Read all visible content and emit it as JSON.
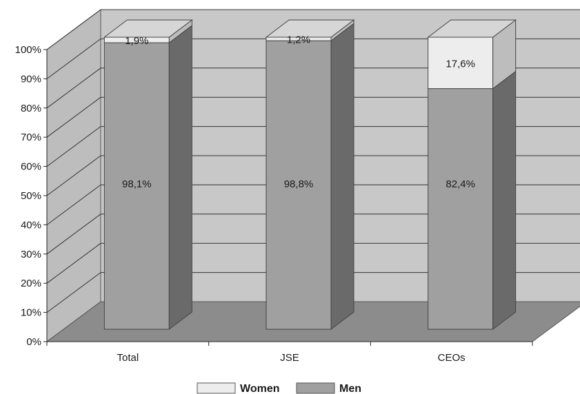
{
  "chart_data": {
    "type": "bar",
    "stacked": true,
    "percent": true,
    "three_d": true,
    "categories": [
      "Total",
      "JSE",
      "CEOs"
    ],
    "series": [
      {
        "name": "Men",
        "values": [
          98.1,
          98.8,
          82.4
        ],
        "labels": [
          "98,1%",
          "98,8%",
          "82,4%"
        ],
        "color": "#a0a0a0"
      },
      {
        "name": "Women",
        "values": [
          1.9,
          1.2,
          17.6
        ],
        "labels": [
          "1,9%",
          "1,2%",
          "17,6%"
        ],
        "color": "#ededed"
      }
    ],
    "yticks": [
      "0%",
      "10%",
      "20%",
      "30%",
      "40%",
      "50%",
      "60%",
      "70%",
      "80%",
      "90%",
      "100%"
    ],
    "ylim": [
      0,
      100
    ],
    "grid": true,
    "legend": {
      "position": "bottom",
      "order": [
        "Women",
        "Men"
      ]
    },
    "colors": {
      "wall": "#c8c8c8",
      "floor": "#8c8c8c",
      "left_wall": "#bdbdbd",
      "side_dark": "#6a6a6a",
      "top_light": "#d6d6d6"
    }
  }
}
